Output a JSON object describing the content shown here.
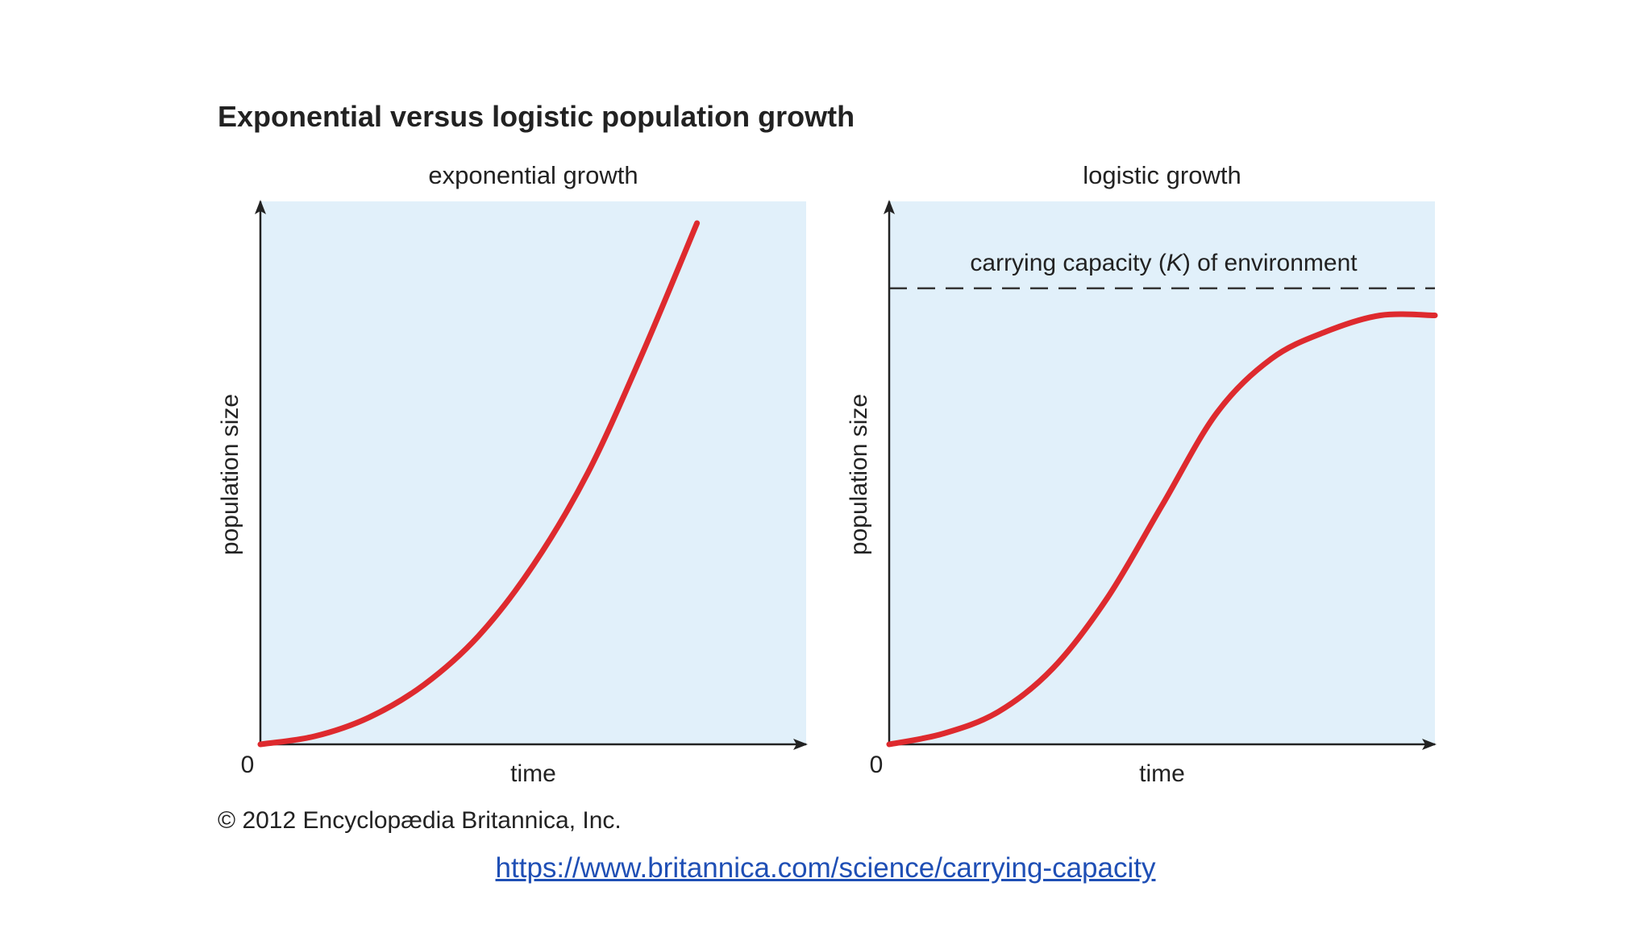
{
  "figure": {
    "title": "Exponential versus logistic population growth",
    "copyright": "© 2012 Encyclopædia Britannica, Inc."
  },
  "source_link": "https://www.britannica.com/science/carrying-capacity",
  "colors": {
    "plot_background": "#e1f0fa",
    "curve": "#de2a2e",
    "axis": "#222222",
    "dashed_line": "#333333"
  },
  "chart_data": [
    {
      "type": "line",
      "title": "exponential growth",
      "xlabel": "time",
      "ylabel": "population size",
      "origin_label": "0",
      "xlim": [
        0,
        1
      ],
      "ylim": [
        0,
        1
      ],
      "grid": false,
      "series": [
        {
          "x": [
            0,
            0.1,
            0.2,
            0.3,
            0.4,
            0.5,
            0.6,
            0.7,
            0.8
          ],
          "y": [
            0,
            0.015,
            0.05,
            0.11,
            0.2,
            0.33,
            0.5,
            0.72,
            0.96
          ]
        }
      ]
    },
    {
      "type": "line",
      "title": "logistic growth",
      "xlabel": "time",
      "ylabel": "population size",
      "origin_label": "0",
      "xlim": [
        0,
        1
      ],
      "ylim": [
        0,
        1
      ],
      "grid": false,
      "annotations": [
        {
          "type": "hline",
          "y": 0.84,
          "style": "dashed",
          "label_parts": [
            "carrying capacity (",
            "K",
            ") of environment"
          ]
        }
      ],
      "series": [
        {
          "x": [
            0,
            0.1,
            0.2,
            0.3,
            0.4,
            0.5,
            0.6,
            0.7,
            0.8,
            0.9,
            1.0
          ],
          "y": [
            0,
            0.02,
            0.06,
            0.14,
            0.27,
            0.44,
            0.61,
            0.71,
            0.76,
            0.79,
            0.79
          ]
        }
      ]
    }
  ]
}
